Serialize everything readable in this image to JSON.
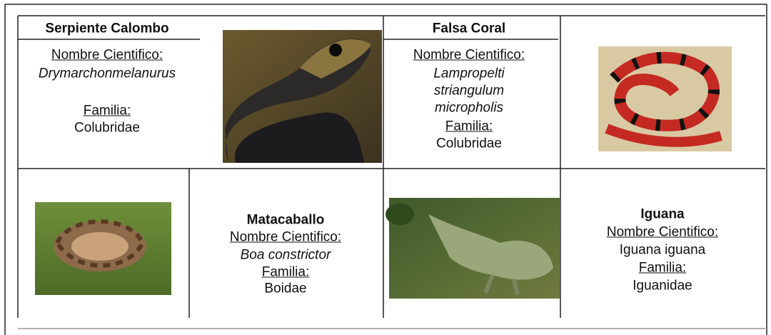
{
  "cells": [
    {
      "title": "Serpiente Calombo",
      "name_label": "Nombre Cientifico:",
      "scientific_name": [
        "Drymarchonmelanurus"
      ],
      "family_label": "Familia:",
      "family": "Colubridae"
    },
    {
      "title": "Falsa Coral",
      "name_label": "Nombre Cientifico:",
      "scientific_name": [
        "Lampropelti",
        "striangulum",
        "micropholis"
      ],
      "family_label": "Familia:",
      "family": "Colubridae"
    },
    {
      "title": "Matacaballo",
      "name_label": "Nombre Cientifico:",
      "scientific_name": [
        "Boa constrictor"
      ],
      "family_label": "Familia:",
      "family": "Boidae"
    },
    {
      "title": "Iguana",
      "name_label": "Nombre Cientifico:",
      "scientific_name": [
        "Iguana iguana"
      ],
      "family_label": "Familia:",
      "family": "Iguanidae"
    }
  ]
}
